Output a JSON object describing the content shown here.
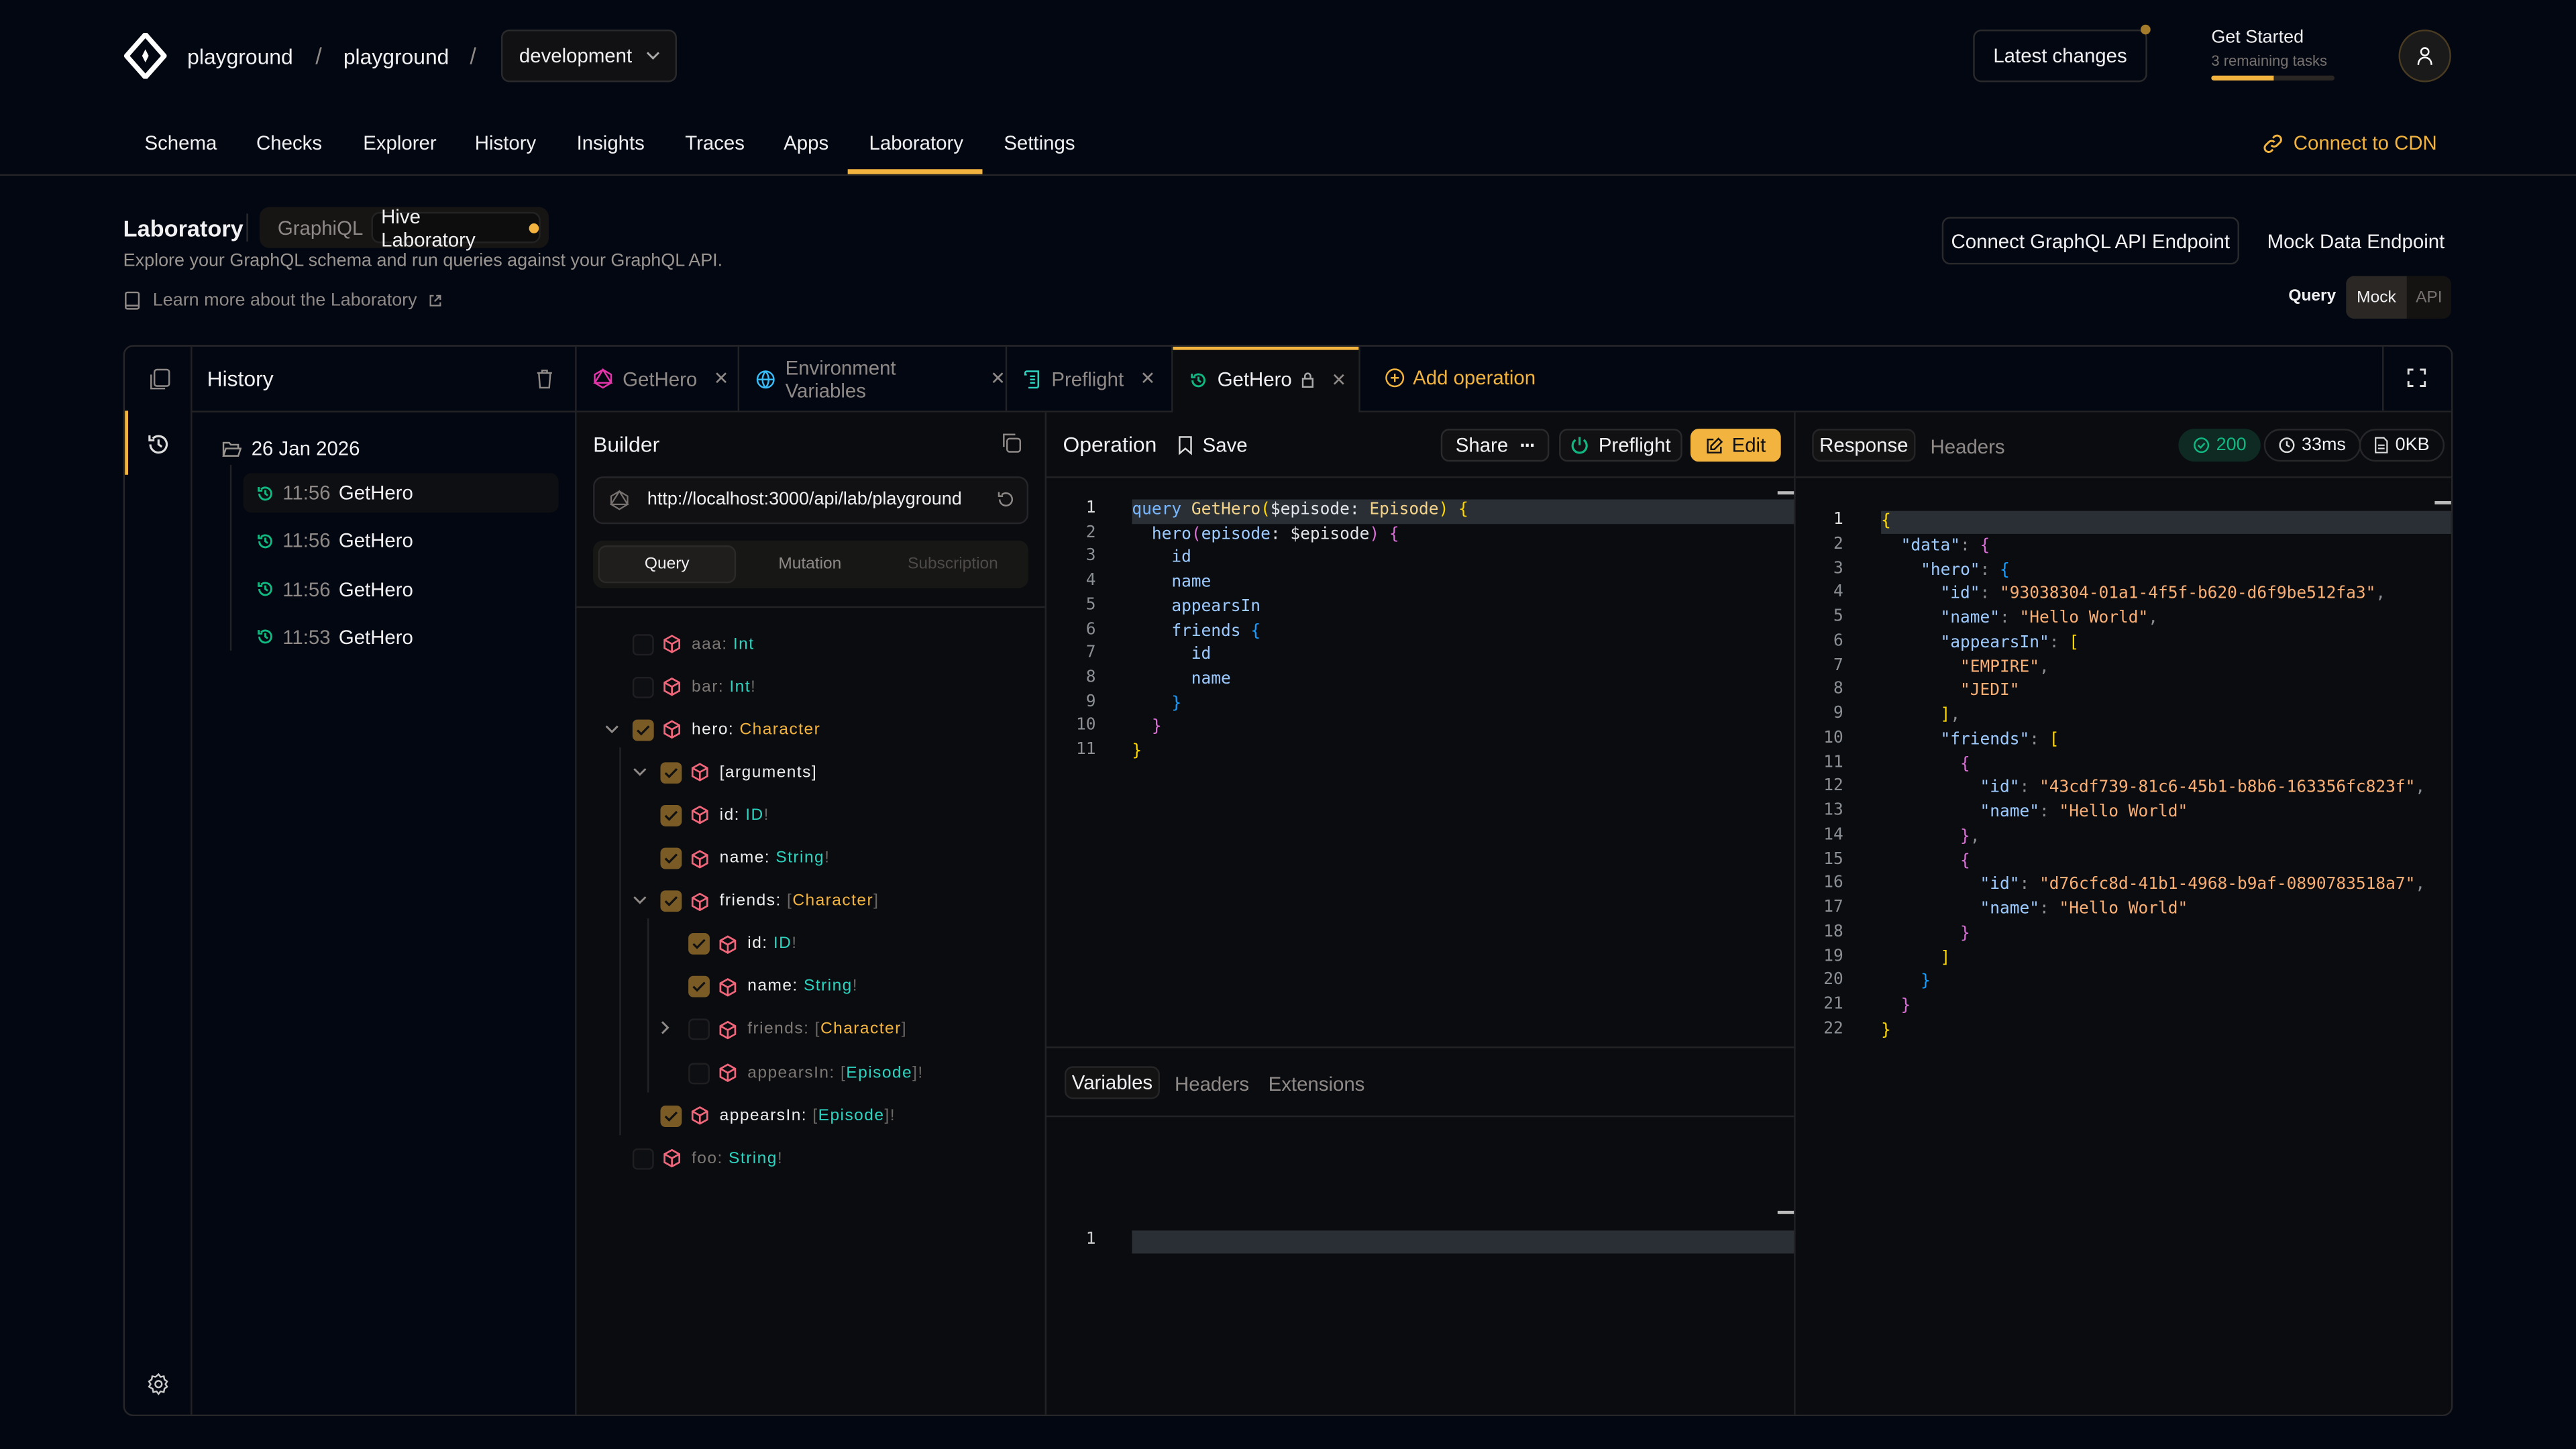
{
  "header": {
    "breadcrumb": [
      "playground",
      "playground"
    ],
    "separator": "/",
    "environment": "development",
    "latest_changes": "Latest changes",
    "get_started": {
      "title": "Get Started",
      "subtitle": "3 remaining tasks",
      "progress_percent": 50
    },
    "connect_cdn": "Connect to CDN"
  },
  "nav": {
    "items": [
      "Schema",
      "Checks",
      "Explorer",
      "History",
      "Insights",
      "Traces",
      "Apps",
      "Laboratory",
      "Settings"
    ],
    "active": "Laboratory"
  },
  "page": {
    "title": "Laboratory",
    "toggle": {
      "options": [
        "GraphiQL",
        "Hive Laboratory"
      ],
      "active": "Hive Laboratory"
    },
    "description": "Explore your GraphQL schema and run queries against your GraphQL API.",
    "learn_more": "Learn more about the Laboratory",
    "connect_endpoint": "Connect GraphQL API Endpoint",
    "mock_endpoint": "Mock Data Endpoint",
    "query_label": "Query",
    "mode": {
      "options": [
        "Mock",
        "API"
      ],
      "active": "Mock"
    }
  },
  "colors": {
    "accent": "#f3b43f",
    "success": "#10b981",
    "background": "#030711",
    "field_icon": "#f0667a"
  },
  "history": {
    "title": "History",
    "group": "26 Jan 2026",
    "items": [
      {
        "time": "11:56",
        "name": "GetHero"
      },
      {
        "time": "11:56",
        "name": "GetHero"
      },
      {
        "time": "11:56",
        "name": "GetHero"
      },
      {
        "time": "11:53",
        "name": "GetHero"
      }
    ]
  },
  "tabs": [
    {
      "label": "GetHero",
      "icon": "graphql-icon",
      "closable": true,
      "active": false
    },
    {
      "label": "Environment Variables",
      "icon": "globe-icon",
      "closable": true,
      "active": false
    },
    {
      "label": "Preflight",
      "icon": "script-icon",
      "closable": true,
      "active": false
    },
    {
      "label": "GetHero",
      "icon": "history-icon",
      "closable": true,
      "locked": true,
      "active": true
    }
  ],
  "add_operation": "Add operation",
  "builder": {
    "title": "Builder",
    "url": "http://localhost:3000/api/lab/playground",
    "op_types": [
      "Query",
      "Mutation",
      "Subscription"
    ],
    "active_op_type": "Query",
    "fields": [
      {
        "level": 0,
        "name": "aaa",
        "type": "Int",
        "kind": "scalar",
        "checked": false,
        "chevron": ""
      },
      {
        "level": 0,
        "name": "bar",
        "type": "Int!",
        "kind": "scalar",
        "checked": false,
        "chevron": ""
      },
      {
        "level": 0,
        "name": "hero",
        "type": "Character",
        "kind": "object",
        "checked": true,
        "chevron": "down"
      },
      {
        "level": 1,
        "name": "[arguments]",
        "type": "",
        "kind": "",
        "checked": true,
        "chevron": "down"
      },
      {
        "level": 1,
        "name": "id",
        "type": "ID!",
        "kind": "scalar",
        "checked": true,
        "chevron": ""
      },
      {
        "level": 1,
        "name": "name",
        "type": "String!",
        "kind": "scalar",
        "checked": true,
        "chevron": ""
      },
      {
        "level": 1,
        "name": "friends",
        "type": "[Character]",
        "kind": "object",
        "checked": true,
        "chevron": "down"
      },
      {
        "level": 2,
        "name": "id",
        "type": "ID!",
        "kind": "scalar",
        "checked": true,
        "chevron": ""
      },
      {
        "level": 2,
        "name": "name",
        "type": "String!",
        "kind": "scalar",
        "checked": true,
        "chevron": ""
      },
      {
        "level": 2,
        "name": "friends",
        "type": "[Character]",
        "kind": "object",
        "checked": false,
        "chevron": "right"
      },
      {
        "level": 2,
        "name": "appearsIn",
        "type": "[Episode]!",
        "kind": "scalar",
        "checked": false,
        "chevron": ""
      },
      {
        "level": 1,
        "name": "appearsIn",
        "type": "[Episode]!",
        "kind": "scalar",
        "checked": true,
        "chevron": ""
      },
      {
        "level": 0,
        "name": "foo",
        "type": "String!",
        "kind": "scalar",
        "checked": false,
        "chevron": ""
      }
    ]
  },
  "operation": {
    "title": "Operation",
    "save": "Save",
    "share": "Share",
    "preflight": "Preflight",
    "edit": "Edit",
    "code": [
      [
        [
          "query",
          "kw"
        ],
        [
          " ",
          "w"
        ],
        [
          "GetHero",
          "fn"
        ],
        [
          "(",
          "y"
        ],
        [
          "$episode",
          "w"
        ],
        [
          ": ",
          "w"
        ],
        [
          "Episode",
          "fn"
        ],
        [
          ")",
          "y"
        ],
        [
          " ",
          "w"
        ],
        [
          "{",
          "y"
        ]
      ],
      [
        [
          "  ",
          "w"
        ],
        [
          "hero",
          "f"
        ],
        [
          "(",
          "p"
        ],
        [
          "episode",
          "f"
        ],
        [
          ": ",
          "w"
        ],
        [
          "$episode",
          "w"
        ],
        [
          ")",
          "p"
        ],
        [
          " ",
          "w"
        ],
        [
          "{",
          "p"
        ]
      ],
      [
        [
          "    id",
          "f"
        ]
      ],
      [
        [
          "    name",
          "f"
        ]
      ],
      [
        [
          "    appearsIn",
          "f"
        ]
      ],
      [
        [
          "    friends",
          "f"
        ],
        [
          " ",
          "w"
        ],
        [
          "{",
          "b"
        ]
      ],
      [
        [
          "      id",
          "f"
        ]
      ],
      [
        [
          "      name",
          "f"
        ]
      ],
      [
        [
          "    }",
          "b"
        ]
      ],
      [
        [
          "  }",
          "p"
        ]
      ],
      [
        [
          "}",
          "y"
        ]
      ]
    ],
    "bottom_tabs": [
      "Variables",
      "Headers",
      "Extensions"
    ],
    "active_bottom_tab": "Variables",
    "variables_code": [
      [
        [
          "",
          "w"
        ]
      ]
    ]
  },
  "response": {
    "tabs": [
      "Response",
      "Headers"
    ],
    "active_tab": "Response",
    "status": "200",
    "duration": "33ms",
    "size": "0KB",
    "code": [
      [
        [
          "{",
          "y"
        ]
      ],
      [
        [
          "  ",
          "w"
        ],
        [
          "\"data\"",
          "f"
        ],
        [
          ": ",
          "d"
        ],
        [
          "{",
          "p"
        ]
      ],
      [
        [
          "    ",
          "w"
        ],
        [
          "\"hero\"",
          "f"
        ],
        [
          ": ",
          "d"
        ],
        [
          "{",
          "b"
        ]
      ],
      [
        [
          "      ",
          "w"
        ],
        [
          "\"id\"",
          "f"
        ],
        [
          ": ",
          "d"
        ],
        [
          "\"93038304-01a1-4f5f-b620-d6f9be512fa3\"",
          "s"
        ],
        [
          ",",
          "d"
        ]
      ],
      [
        [
          "      ",
          "w"
        ],
        [
          "\"name\"",
          "f"
        ],
        [
          ": ",
          "d"
        ],
        [
          "\"Hello World\"",
          "s"
        ],
        [
          ",",
          "d"
        ]
      ],
      [
        [
          "      ",
          "w"
        ],
        [
          "\"appearsIn\"",
          "f"
        ],
        [
          ": ",
          "d"
        ],
        [
          "[",
          "y"
        ]
      ],
      [
        [
          "        ",
          "w"
        ],
        [
          "\"EMPIRE\"",
          "s"
        ],
        [
          ",",
          "d"
        ]
      ],
      [
        [
          "        ",
          "w"
        ],
        [
          "\"JEDI\"",
          "s"
        ]
      ],
      [
        [
          "      ",
          "w"
        ],
        [
          "]",
          "y"
        ],
        [
          ",",
          "d"
        ]
      ],
      [
        [
          "      ",
          "w"
        ],
        [
          "\"friends\"",
          "f"
        ],
        [
          ": ",
          "d"
        ],
        [
          "[",
          "y"
        ]
      ],
      [
        [
          "        ",
          "w"
        ],
        [
          "{",
          "p"
        ]
      ],
      [
        [
          "          ",
          "w"
        ],
        [
          "\"id\"",
          "f"
        ],
        [
          ": ",
          "d"
        ],
        [
          "\"43cdf739-81c6-45b1-b8b6-163356fc823f\"",
          "s"
        ],
        [
          ",",
          "d"
        ]
      ],
      [
        [
          "          ",
          "w"
        ],
        [
          "\"name\"",
          "f"
        ],
        [
          ": ",
          "d"
        ],
        [
          "\"Hello World\"",
          "s"
        ]
      ],
      [
        [
          "        ",
          "w"
        ],
        [
          "}",
          "p"
        ],
        [
          ",",
          "d"
        ]
      ],
      [
        [
          "        ",
          "w"
        ],
        [
          "{",
          "p"
        ]
      ],
      [
        [
          "          ",
          "w"
        ],
        [
          "\"id\"",
          "f"
        ],
        [
          ": ",
          "d"
        ],
        [
          "\"d76cfc8d-41b1-4968-b9af-0890783518a7\"",
          "s"
        ],
        [
          ",",
          "d"
        ]
      ],
      [
        [
          "          ",
          "w"
        ],
        [
          "\"name\"",
          "f"
        ],
        [
          ": ",
          "d"
        ],
        [
          "\"Hello World\"",
          "s"
        ]
      ],
      [
        [
          "        ",
          "w"
        ],
        [
          "}",
          "p"
        ]
      ],
      [
        [
          "      ",
          "w"
        ],
        [
          "]",
          "y"
        ]
      ],
      [
        [
          "    ",
          "w"
        ],
        [
          "}",
          "b"
        ]
      ],
      [
        [
          "  ",
          "w"
        ],
        [
          "}",
          "p"
        ]
      ],
      [
        [
          "}",
          "y"
        ]
      ]
    ]
  }
}
